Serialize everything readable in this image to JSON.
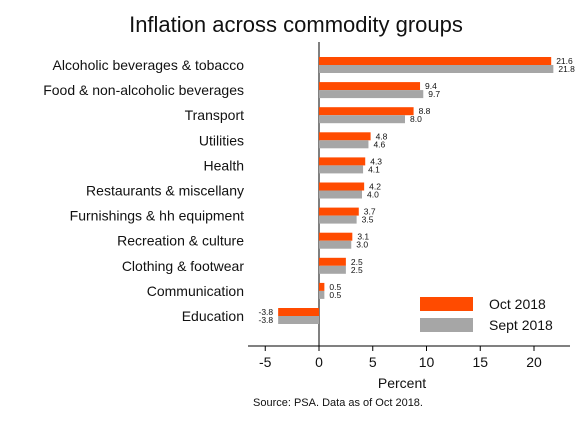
{
  "chart_data": {
    "type": "bar",
    "orientation": "horizontal",
    "title": "Inflation across commodity groups",
    "xlabel": "Percent",
    "ylabel": "",
    "xlim": [
      -6,
      23
    ],
    "xticks": [
      -5,
      0,
      5,
      10,
      15,
      20
    ],
    "xtick_labels": [
      "-5",
      "0",
      "5",
      "10",
      "15",
      "20"
    ],
    "grid": false,
    "legend_position": "bottom-right",
    "categories": [
      "Alcoholic beverages & tobacco",
      "Food & non-alcoholic beverages",
      "Transport",
      "Utilities",
      "Health",
      "Restaurants & miscellany",
      "Furnishings & hh equipment",
      "Recreation & culture",
      "Clothing & footwear",
      "Communication",
      "Education"
    ],
    "series": [
      {
        "name": "Oct 2018",
        "color": "#ff4b00",
        "values": [
          21.6,
          9.4,
          8.8,
          4.8,
          4.3,
          4.2,
          3.7,
          3.1,
          2.5,
          0.5,
          -3.8
        ],
        "labels": [
          "21.6",
          "9.4",
          "8.8",
          "4.8",
          "4.3",
          "4.2",
          "3.7",
          "3.1",
          "2.5",
          "0.5",
          "-3.8"
        ]
      },
      {
        "name": "Sept 2018",
        "color": "#a6a6a6",
        "values": [
          21.8,
          9.7,
          8.0,
          4.6,
          4.1,
          4.0,
          3.5,
          3.0,
          2.5,
          0.5,
          -3.8
        ],
        "labels": [
          "21.8",
          "9.7",
          "8.0",
          "4.6",
          "4.1",
          "4.0",
          "3.5",
          "3.0",
          "2.5",
          "0.5",
          "-3.8"
        ]
      }
    ],
    "source": "Source: PSA. Data as of Oct 2018."
  }
}
